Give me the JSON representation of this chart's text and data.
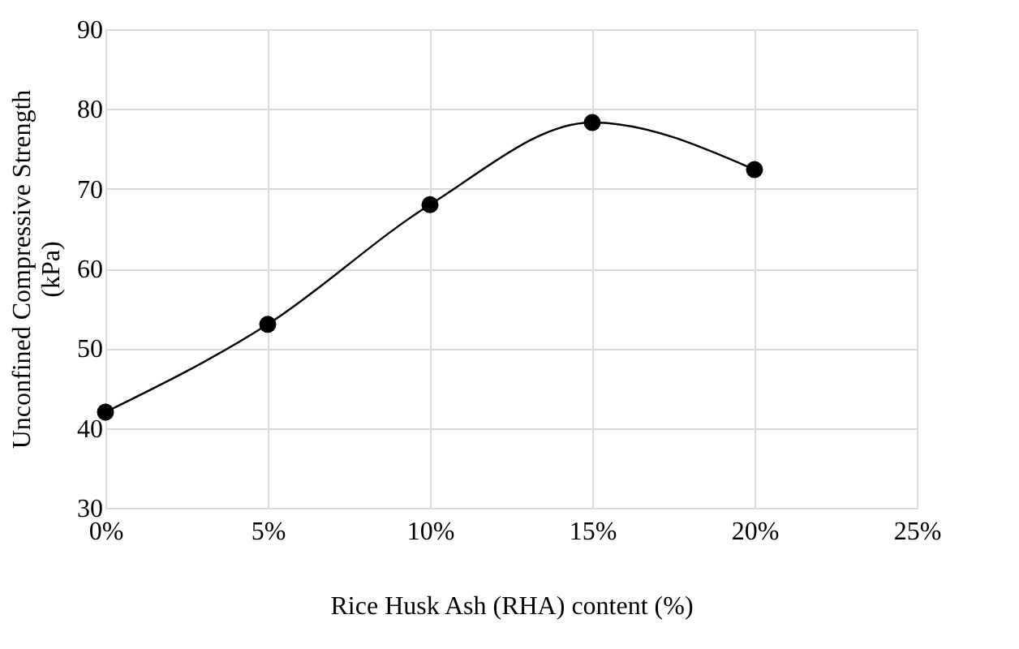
{
  "chart_data": {
    "type": "line",
    "xlabel": "Rice Husk Ash (RHA) content (%)",
    "ylabel": "Unconfined Compressive Strength\n(kPa)",
    "x": [
      0,
      5,
      10,
      15,
      20
    ],
    "series": [
      {
        "color": "#000000",
        "values": [
          42,
          53,
          68,
          78.3,
          72.4
        ]
      }
    ],
    "xlim": [
      0,
      25
    ],
    "xticks": [
      {
        "value": 0,
        "label": "0%"
      },
      {
        "value": 5,
        "label": "5%"
      },
      {
        "value": 10,
        "label": "10%"
      },
      {
        "value": 15,
        "label": "15%"
      },
      {
        "value": 20,
        "label": "20%"
      },
      {
        "value": 25,
        "label": "25%"
      }
    ],
    "ylim": [
      30,
      90
    ],
    "yticks": [
      30,
      40,
      50,
      60,
      70,
      80,
      90
    ],
    "grid": true,
    "marker": "circle",
    "line_style": "solid"
  }
}
